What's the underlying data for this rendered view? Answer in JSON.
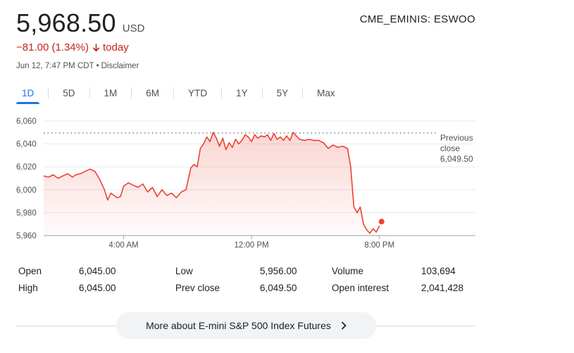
{
  "quote": {
    "price": "5,968.50",
    "currency": "USD",
    "ticker": "CME_EMINIS: ESWOO",
    "change": "−81.00 (1.34%)",
    "change_period": "today",
    "timestamp": "Jun 12, 7:47 PM CDT",
    "separator": "•",
    "disclaimer": "Disclaimer",
    "down_color": "#c5221f"
  },
  "tabs": [
    {
      "label": "1D",
      "active": true
    },
    {
      "label": "5D"
    },
    {
      "label": "1M"
    },
    {
      "label": "6M"
    },
    {
      "label": "YTD"
    },
    {
      "label": "1Y"
    },
    {
      "label": "5Y"
    },
    {
      "label": "Max"
    }
  ],
  "chart_data": {
    "type": "line",
    "title": "",
    "xlabel": "",
    "ylabel": "",
    "ylim": [
      5960,
      6060
    ],
    "y_ticks": [
      "6,060",
      "6,040",
      "6,020",
      "6,000",
      "5,980",
      "5,960"
    ],
    "y_tick_values": [
      6060,
      6040,
      6020,
      6000,
      5980,
      5960
    ],
    "x_ticks": [
      "4:00 AM",
      "12:00 PM",
      "8:00 PM"
    ],
    "x_tick_hours": [
      4,
      12,
      20
    ],
    "x_range_hours": [
      -1,
      26
    ],
    "line_color": "#ea4335",
    "previous_close": {
      "label_line1": "Previous",
      "label_line2": "close",
      "value_text": "6,049.50",
      "value": 6049.5
    },
    "series": [
      {
        "name": "ESWOO",
        "x": [
          -1.0,
          -0.7,
          -0.4,
          -0.1,
          0.2,
          0.5,
          0.8,
          1.0,
          1.3,
          1.6,
          1.9,
          2.2,
          2.5,
          2.8,
          3.0,
          3.2,
          3.4,
          3.6,
          3.8,
          4.0,
          4.3,
          4.6,
          4.9,
          5.2,
          5.5,
          5.8,
          6.1,
          6.4,
          6.7,
          7.0,
          7.3,
          7.6,
          7.9,
          8.2,
          8.4,
          8.6,
          8.8,
          9.0,
          9.2,
          9.4,
          9.6,
          9.8,
          10.0,
          10.2,
          10.4,
          10.6,
          10.8,
          11.0,
          11.2,
          11.4,
          11.6,
          11.8,
          12.0,
          12.2,
          12.4,
          12.6,
          12.8,
          13.0,
          13.2,
          13.4,
          13.6,
          13.8,
          14.0,
          14.2,
          14.4,
          14.6,
          14.8,
          15.0,
          15.3,
          15.6,
          15.9,
          16.2,
          16.5,
          16.8,
          17.1,
          17.4,
          17.7,
          18.0,
          18.2,
          18.4,
          18.6,
          18.8,
          19.0,
          19.2,
          19.4,
          19.6,
          19.8,
          20.0
        ],
        "values": [
          6012,
          6011,
          6013,
          6010,
          6012,
          6014,
          6011,
          6013,
          6014,
          6016,
          6018,
          6016,
          6009,
          6000,
          5991,
          5997,
          5995,
          5993,
          5994,
          6003,
          6006,
          6004,
          6002,
          6005,
          5998,
          6002,
          5994,
          6000,
          5995,
          5997,
          5993,
          5998,
          6000,
          6019,
          6022,
          6020,
          6036,
          6040,
          6046,
          6042,
          6050,
          6045,
          6038,
          6045,
          6035,
          6041,
          6037,
          6044,
          6040,
          6043,
          6048,
          6046,
          6042,
          6048,
          6045,
          6047,
          6046,
          6048,
          6043,
          6049,
          6044,
          6046,
          6043,
          6047,
          6043,
          6050,
          6047,
          6044,
          6043,
          6044,
          6043,
          6043,
          6041,
          6036,
          6039,
          6037,
          6038,
          6036,
          6020,
          5985,
          5980,
          5985,
          5970,
          5965,
          5962,
          5966,
          5963,
          5968.5
        ]
      }
    ]
  },
  "stats": [
    {
      "label": "Open",
      "value": "6,045.00"
    },
    {
      "label": "High",
      "value": "6,045.00"
    },
    {
      "label": "Low",
      "value": "5,956.00"
    },
    {
      "label": "Prev close",
      "value": "6,049.50"
    },
    {
      "label": "Volume",
      "value": "103,694"
    },
    {
      "label": "Open interest",
      "value": "2,041,428"
    }
  ],
  "more_button": {
    "label": "More about E-mini S&P 500 Index Futures"
  },
  "icons": {
    "down_arrow": "down-arrow-icon",
    "chevron": "chevron-right-icon"
  }
}
